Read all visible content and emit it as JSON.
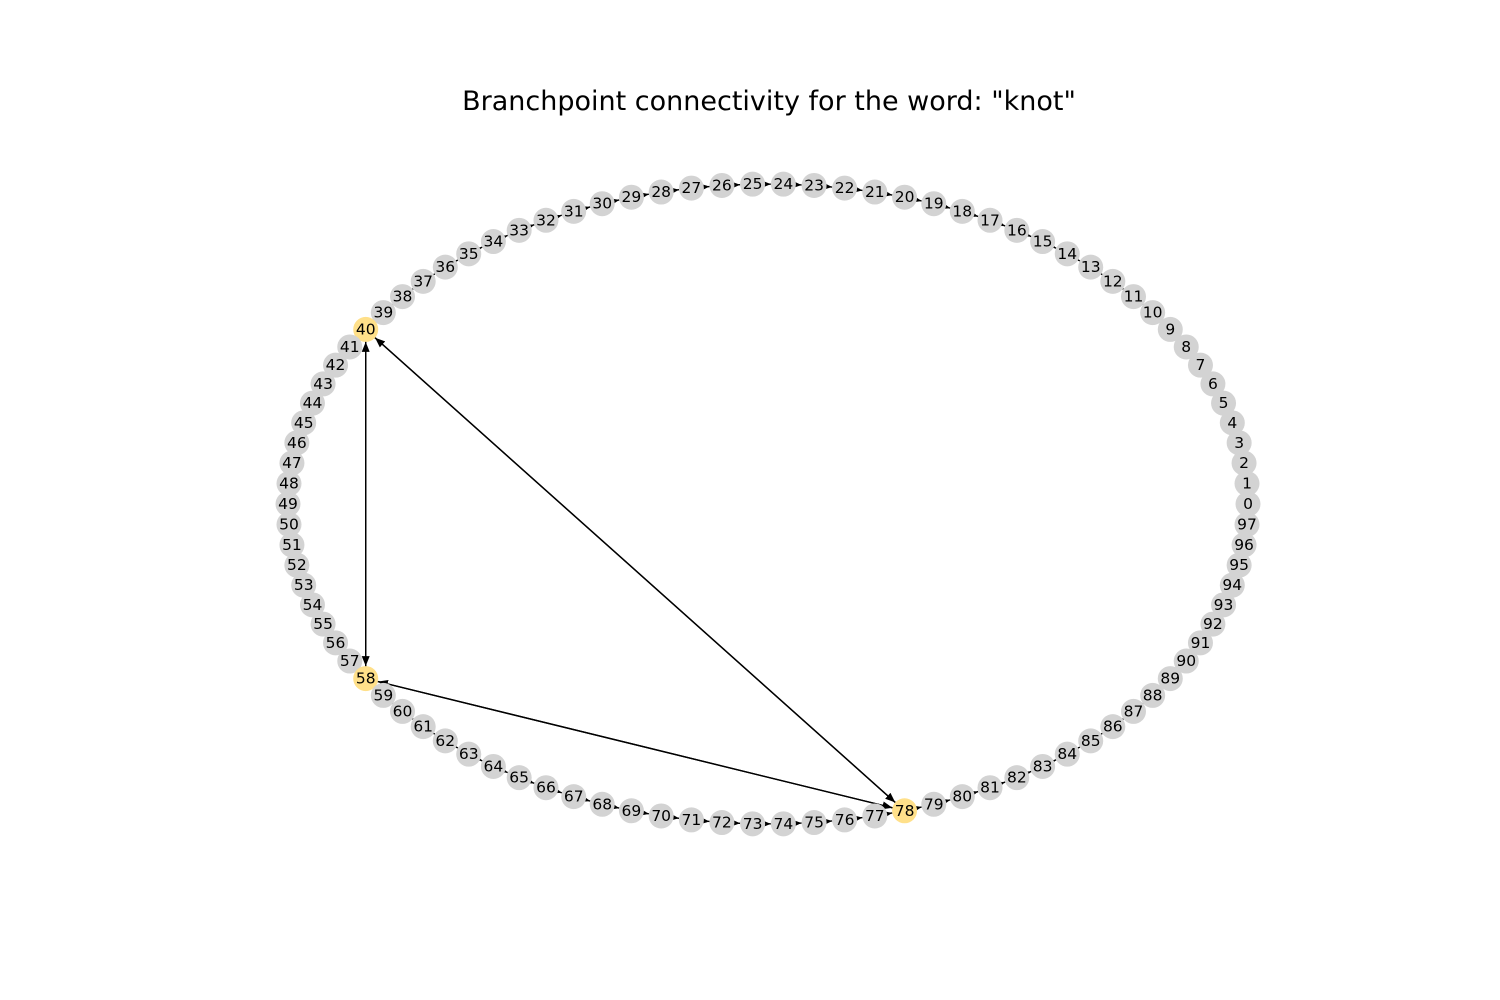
{
  "title": "Branchpoint connectivity for the word: \"knot\"",
  "colors": {
    "node": "#d3d3d3",
    "branchpoint": "#ffe08a",
    "edge": "#000000",
    "background": "#ffffff"
  },
  "nodes": [
    {
      "id": "0"
    },
    {
      "id": "1"
    },
    {
      "id": "2"
    },
    {
      "id": "3"
    },
    {
      "id": "4"
    },
    {
      "id": "5"
    },
    {
      "id": "6"
    },
    {
      "id": "7"
    },
    {
      "id": "8"
    },
    {
      "id": "9"
    },
    {
      "id": "10"
    },
    {
      "id": "11"
    },
    {
      "id": "12"
    },
    {
      "id": "13"
    },
    {
      "id": "14"
    },
    {
      "id": "15"
    },
    {
      "id": "16"
    },
    {
      "id": "17"
    },
    {
      "id": "18"
    },
    {
      "id": "19"
    },
    {
      "id": "20"
    },
    {
      "id": "21"
    },
    {
      "id": "22"
    },
    {
      "id": "23"
    },
    {
      "id": "24"
    },
    {
      "id": "25"
    },
    {
      "id": "26"
    },
    {
      "id": "27"
    },
    {
      "id": "28"
    },
    {
      "id": "29"
    },
    {
      "id": "30"
    },
    {
      "id": "31"
    },
    {
      "id": "32"
    },
    {
      "id": "33"
    },
    {
      "id": "34"
    },
    {
      "id": "35"
    },
    {
      "id": "36"
    },
    {
      "id": "37"
    },
    {
      "id": "38"
    },
    {
      "id": "39"
    },
    {
      "id": "40",
      "branchpoint": true
    },
    {
      "id": "41"
    },
    {
      "id": "42"
    },
    {
      "id": "43"
    },
    {
      "id": "44"
    },
    {
      "id": "45"
    },
    {
      "id": "46"
    },
    {
      "id": "47"
    },
    {
      "id": "48"
    },
    {
      "id": "49"
    },
    {
      "id": "50"
    },
    {
      "id": "51"
    },
    {
      "id": "52"
    },
    {
      "id": "53"
    },
    {
      "id": "54"
    },
    {
      "id": "55"
    },
    {
      "id": "56"
    },
    {
      "id": "57"
    },
    {
      "id": "58",
      "branchpoint": true
    },
    {
      "id": "59"
    },
    {
      "id": "60"
    },
    {
      "id": "61"
    },
    {
      "id": "62"
    },
    {
      "id": "63"
    },
    {
      "id": "64"
    },
    {
      "id": "65"
    },
    {
      "id": "66"
    },
    {
      "id": "67"
    },
    {
      "id": "68"
    },
    {
      "id": "69"
    },
    {
      "id": "70"
    },
    {
      "id": "71"
    },
    {
      "id": "72"
    },
    {
      "id": "73"
    },
    {
      "id": "74"
    },
    {
      "id": "75"
    },
    {
      "id": "76"
    },
    {
      "id": "77"
    },
    {
      "id": "78",
      "branchpoint": true
    },
    {
      "id": "79"
    },
    {
      "id": "80"
    },
    {
      "id": "81"
    },
    {
      "id": "82"
    },
    {
      "id": "83"
    },
    {
      "id": "84"
    },
    {
      "id": "85"
    },
    {
      "id": "86"
    },
    {
      "id": "87"
    },
    {
      "id": "88"
    },
    {
      "id": "89"
    },
    {
      "id": "90"
    },
    {
      "id": "91"
    },
    {
      "id": "92"
    },
    {
      "id": "93"
    },
    {
      "id": "94"
    },
    {
      "id": "95"
    },
    {
      "id": "96"
    },
    {
      "id": "97"
    }
  ],
  "chain_order": [
    "97",
    "96",
    "95",
    "94",
    "93",
    "92",
    "91",
    "90",
    "89",
    "88",
    "87",
    "86",
    "85",
    "84",
    "83",
    "82",
    "81",
    "80",
    "79",
    "78",
    "77",
    "76",
    "75",
    "74",
    "73",
    "72",
    "71",
    "70",
    "69",
    "68",
    "67",
    "66",
    "65",
    "64",
    "63",
    "62",
    "61",
    "60",
    "59",
    "58",
    "57",
    "56",
    "55",
    "54",
    "53",
    "52",
    "51",
    "50",
    "49",
    "48",
    "47",
    "46",
    "45",
    "44",
    "43",
    "42",
    "41",
    "40",
    "39",
    "38",
    "37",
    "36",
    "35",
    "34",
    "33",
    "32",
    "31",
    "30",
    "29",
    "28",
    "27",
    "26",
    "25",
    "24",
    "23",
    "22",
    "21",
    "20",
    "19",
    "18",
    "17",
    "16",
    "15",
    "14",
    "13",
    "12",
    "11",
    "10",
    "9",
    "8",
    "7",
    "6",
    "5",
    "4",
    "3",
    "2",
    "1",
    "0"
  ],
  "edges": [
    {
      "from": "1",
      "to": "0"
    },
    {
      "from": "2",
      "to": "1"
    },
    {
      "from": "3",
      "to": "2"
    },
    {
      "from": "4",
      "to": "3"
    },
    {
      "from": "5",
      "to": "4"
    },
    {
      "from": "6",
      "to": "5"
    },
    {
      "from": "7",
      "to": "6"
    },
    {
      "from": "8",
      "to": "7"
    },
    {
      "from": "9",
      "to": "8"
    },
    {
      "from": "10",
      "to": "9"
    },
    {
      "from": "11",
      "to": "10"
    },
    {
      "from": "12",
      "to": "11"
    },
    {
      "from": "13",
      "to": "12"
    },
    {
      "from": "14",
      "to": "13"
    },
    {
      "from": "15",
      "to": "14"
    },
    {
      "from": "16",
      "to": "15"
    },
    {
      "from": "17",
      "to": "16"
    },
    {
      "from": "18",
      "to": "17"
    },
    {
      "from": "19",
      "to": "18"
    },
    {
      "from": "20",
      "to": "19"
    },
    {
      "from": "21",
      "to": "20"
    },
    {
      "from": "22",
      "to": "21"
    },
    {
      "from": "23",
      "to": "22"
    },
    {
      "from": "24",
      "to": "23"
    },
    {
      "from": "25",
      "to": "24"
    },
    {
      "from": "26",
      "to": "25"
    },
    {
      "from": "27",
      "to": "26"
    },
    {
      "from": "28",
      "to": "27"
    },
    {
      "from": "29",
      "to": "28"
    },
    {
      "from": "30",
      "to": "29"
    },
    {
      "from": "31",
      "to": "30"
    },
    {
      "from": "32",
      "to": "31"
    },
    {
      "from": "33",
      "to": "32"
    },
    {
      "from": "34",
      "to": "33"
    },
    {
      "from": "35",
      "to": "34"
    },
    {
      "from": "36",
      "to": "35"
    },
    {
      "from": "37",
      "to": "36"
    },
    {
      "from": "38",
      "to": "37"
    },
    {
      "from": "39",
      "to": "38"
    },
    {
      "from": "40",
      "to": "39"
    },
    {
      "from": "40",
      "to": "41"
    },
    {
      "from": "40",
      "to": "58"
    },
    {
      "from": "40",
      "to": "78"
    },
    {
      "from": "41",
      "to": "42"
    },
    {
      "from": "42",
      "to": "43"
    },
    {
      "from": "43",
      "to": "44"
    },
    {
      "from": "44",
      "to": "45"
    },
    {
      "from": "45",
      "to": "46"
    },
    {
      "from": "46",
      "to": "47"
    },
    {
      "from": "47",
      "to": "48"
    },
    {
      "from": "48",
      "to": "49"
    },
    {
      "from": "49",
      "to": "50"
    },
    {
      "from": "50",
      "to": "51"
    },
    {
      "from": "51",
      "to": "52"
    },
    {
      "from": "52",
      "to": "53"
    },
    {
      "from": "53",
      "to": "54"
    },
    {
      "from": "54",
      "to": "55"
    },
    {
      "from": "55",
      "to": "56"
    },
    {
      "from": "56",
      "to": "57"
    },
    {
      "from": "57",
      "to": "58"
    },
    {
      "from": "58",
      "to": "40"
    },
    {
      "from": "58",
      "to": "59"
    },
    {
      "from": "58",
      "to": "78"
    },
    {
      "from": "59",
      "to": "60"
    },
    {
      "from": "60",
      "to": "61"
    },
    {
      "from": "61",
      "to": "62"
    },
    {
      "from": "62",
      "to": "63"
    },
    {
      "from": "63",
      "to": "64"
    },
    {
      "from": "64",
      "to": "65"
    },
    {
      "from": "65",
      "to": "66"
    },
    {
      "from": "66",
      "to": "67"
    },
    {
      "from": "67",
      "to": "68"
    },
    {
      "from": "68",
      "to": "69"
    },
    {
      "from": "69",
      "to": "70"
    },
    {
      "from": "70",
      "to": "71"
    },
    {
      "from": "71",
      "to": "72"
    },
    {
      "from": "72",
      "to": "73"
    },
    {
      "from": "73",
      "to": "74"
    },
    {
      "from": "74",
      "to": "75"
    },
    {
      "from": "75",
      "to": "76"
    },
    {
      "from": "76",
      "to": "77"
    },
    {
      "from": "77",
      "to": "78"
    },
    {
      "from": "78",
      "to": "40"
    },
    {
      "from": "78",
      "to": "58"
    },
    {
      "from": "78",
      "to": "79"
    },
    {
      "from": "79",
      "to": "80"
    },
    {
      "from": "80",
      "to": "81"
    },
    {
      "from": "81",
      "to": "82"
    },
    {
      "from": "82",
      "to": "83"
    },
    {
      "from": "83",
      "to": "84"
    },
    {
      "from": "84",
      "to": "85"
    },
    {
      "from": "85",
      "to": "86"
    },
    {
      "from": "86",
      "to": "87"
    },
    {
      "from": "87",
      "to": "88"
    },
    {
      "from": "88",
      "to": "89"
    },
    {
      "from": "89",
      "to": "90"
    },
    {
      "from": "90",
      "to": "91"
    },
    {
      "from": "91",
      "to": "92"
    },
    {
      "from": "92",
      "to": "93"
    },
    {
      "from": "93",
      "to": "94"
    },
    {
      "from": "94",
      "to": "95"
    },
    {
      "from": "95",
      "to": "96"
    },
    {
      "from": "96",
      "to": "97"
    }
  ]
}
